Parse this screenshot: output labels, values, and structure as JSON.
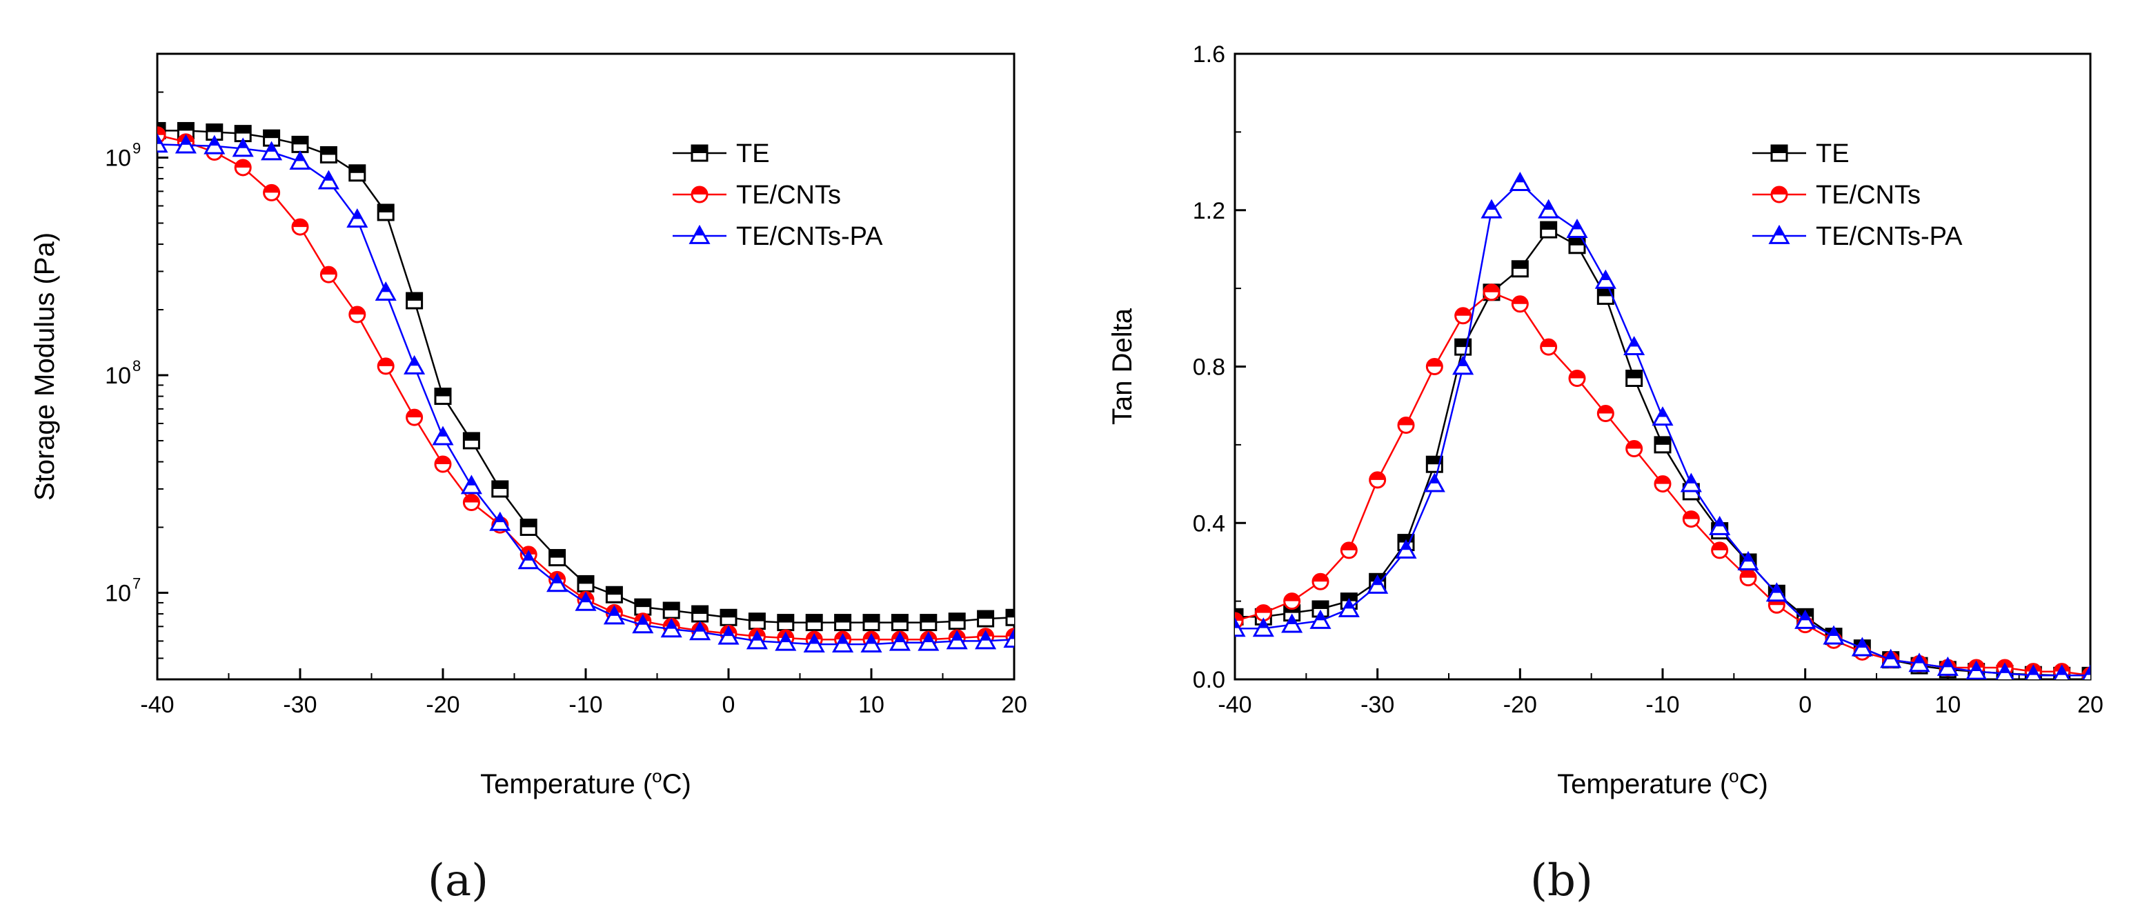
{
  "chart_data": [
    {
      "type": "line",
      "panel_label": "(a)",
      "xlabel": "Temperature (°C)",
      "xlabel_parts": {
        "main": "Temperature (",
        "sup": "o",
        "end": "C)"
      },
      "ylabel": "Storage Modulus (Pa)",
      "yscale": "log",
      "xlim": [
        -40,
        20
      ],
      "ylim": [
        4000000,
        3000000000
      ],
      "x_ticks": [
        -40,
        -30,
        -20,
        -10,
        0,
        10,
        20
      ],
      "x_tick_labels": [
        "-40",
        "-30",
        "-20",
        "-10",
        "0",
        "10",
        "20"
      ],
      "y_ticks": [
        {
          "value": 10000000,
          "base": "10",
          "exp": "7"
        },
        {
          "value": 100000000,
          "base": "10",
          "exp": "8"
        },
        {
          "value": 1000000000,
          "base": "10",
          "exp": "9"
        }
      ],
      "legend_position": "top-right",
      "series": [
        {
          "name": "TE",
          "color": "#000000",
          "marker": "square",
          "x": [
            -40,
            -38,
            -36,
            -34,
            -32,
            -30,
            -28,
            -26,
            -24,
            -22,
            -20,
            -18,
            -16,
            -14,
            -12,
            -10,
            -8,
            -6,
            -4,
            -2,
            0,
            2,
            4,
            6,
            8,
            10,
            12,
            14,
            16,
            18,
            20
          ],
          "y": [
            1330000000,
            1330000000,
            1310000000,
            1290000000,
            1230000000,
            1150000000,
            1030000000,
            850000000,
            560000000,
            220000000,
            80000000,
            50000000,
            30000000,
            20000000,
            14500000,
            11000000,
            9800000,
            8600000,
            8300000,
            8000000,
            7700000,
            7400000,
            7300000,
            7300000,
            7300000,
            7300000,
            7300000,
            7300000,
            7400000,
            7600000,
            7700000
          ]
        },
        {
          "name": "TE/CNTs",
          "color": "#ff0000",
          "marker": "circle",
          "x": [
            -40,
            -38,
            -36,
            -34,
            -32,
            -30,
            -28,
            -26,
            -24,
            -22,
            -20,
            -18,
            -16,
            -14,
            -12,
            -10,
            -8,
            -6,
            -4,
            -2,
            0,
            2,
            4,
            6,
            8,
            10,
            12,
            14,
            16,
            18,
            20
          ],
          "y": [
            1270000000,
            1180000000,
            1060000000,
            900000000,
            690000000,
            480000000,
            290000000,
            190000000,
            110000000,
            64000000,
            39000000,
            26000000,
            20500000,
            15000000,
            11500000,
            9300000,
            8100000,
            7400000,
            7000000,
            6700000,
            6500000,
            6300000,
            6200000,
            6100000,
            6100000,
            6100000,
            6100000,
            6100000,
            6200000,
            6300000,
            6300000
          ]
        },
        {
          "name": "TE/CNTs-PA",
          "color": "#0000ff",
          "marker": "triangle",
          "x": [
            -40,
            -38,
            -36,
            -34,
            -32,
            -30,
            -28,
            -26,
            -24,
            -22,
            -20,
            -18,
            -16,
            -14,
            -12,
            -10,
            -8,
            -6,
            -4,
            -2,
            0,
            2,
            4,
            6,
            8,
            10,
            12,
            14,
            16,
            18,
            20
          ],
          "y": [
            1150000000,
            1140000000,
            1130000000,
            1100000000,
            1060000000,
            960000000,
            780000000,
            520000000,
            240000000,
            110000000,
            52000000,
            31000000,
            21000000,
            14000000,
            11000000,
            9000000,
            7800000,
            7100000,
            6800000,
            6600000,
            6300000,
            6000000,
            5900000,
            5800000,
            5800000,
            5800000,
            5900000,
            5900000,
            6000000,
            6000000,
            6100000
          ]
        }
      ]
    },
    {
      "type": "line",
      "panel_label": "(b)",
      "xlabel": "Temperature (°C)",
      "xlabel_parts": {
        "main": "Temperature (",
        "sup": "o",
        "end": "C)"
      },
      "ylabel": "Tan Delta",
      "yscale": "linear",
      "xlim": [
        -40,
        20
      ],
      "ylim": [
        0.0,
        1.6
      ],
      "x_ticks": [
        -40,
        -30,
        -20,
        -10,
        0,
        10,
        20
      ],
      "x_tick_labels": [
        "-40",
        "-30",
        "-20",
        "-10",
        "0",
        "10",
        "20"
      ],
      "y_ticks": [
        0.0,
        0.4,
        0.8,
        1.2,
        1.6
      ],
      "y_tick_labels": [
        "0.0",
        "0.4",
        "0.8",
        "1.2",
        "1.6"
      ],
      "legend_position": "top-right",
      "series": [
        {
          "name": "TE",
          "color": "#000000",
          "marker": "square",
          "x": [
            -40,
            -38,
            -36,
            -34,
            -32,
            -30,
            -28,
            -26,
            -24,
            -22,
            -20,
            -18,
            -16,
            -14,
            -12,
            -10,
            -8,
            -6,
            -4,
            -2,
            0,
            2,
            4,
            6,
            8,
            10,
            12,
            14,
            16,
            18,
            20
          ],
          "y": [
            0.16,
            0.16,
            0.17,
            0.18,
            0.2,
            0.25,
            0.35,
            0.55,
            0.85,
            0.99,
            1.05,
            1.15,
            1.11,
            0.98,
            0.77,
            0.6,
            0.48,
            0.38,
            0.3,
            0.22,
            0.16,
            0.11,
            0.08,
            0.05,
            0.035,
            0.025,
            0.02,
            0.015,
            0.012,
            0.01,
            0.01
          ]
        },
        {
          "name": "TE/CNTs",
          "color": "#ff0000",
          "marker": "circle",
          "x": [
            -40,
            -38,
            -36,
            -34,
            -32,
            -30,
            -28,
            -26,
            -24,
            -22,
            -20,
            -18,
            -16,
            -14,
            -12,
            -10,
            -8,
            -6,
            -4,
            -2,
            0,
            2,
            4,
            6,
            8,
            10,
            12,
            14,
            16,
            18,
            20
          ],
          "y": [
            0.15,
            0.17,
            0.2,
            0.25,
            0.33,
            0.51,
            0.65,
            0.8,
            0.93,
            0.99,
            0.96,
            0.85,
            0.77,
            0.68,
            0.59,
            0.5,
            0.41,
            0.33,
            0.26,
            0.19,
            0.14,
            0.1,
            0.07,
            0.05,
            0.04,
            0.03,
            0.03,
            0.03,
            0.02,
            0.02,
            0.01
          ]
        },
        {
          "name": "TE/CNTs-PA",
          "color": "#0000ff",
          "marker": "triangle",
          "x": [
            -40,
            -38,
            -36,
            -34,
            -32,
            -30,
            -28,
            -26,
            -24,
            -22,
            -20,
            -18,
            -16,
            -14,
            -12,
            -10,
            -8,
            -6,
            -4,
            -2,
            0,
            2,
            4,
            6,
            8,
            10,
            12,
            14,
            16,
            18,
            20
          ],
          "y": [
            0.13,
            0.13,
            0.14,
            0.15,
            0.18,
            0.24,
            0.33,
            0.5,
            0.8,
            1.2,
            1.27,
            1.2,
            1.15,
            1.02,
            0.85,
            0.67,
            0.5,
            0.39,
            0.3,
            0.22,
            0.15,
            0.11,
            0.08,
            0.05,
            0.04,
            0.03,
            0.02,
            0.015,
            0.01,
            0.01,
            0.01
          ]
        }
      ]
    }
  ]
}
